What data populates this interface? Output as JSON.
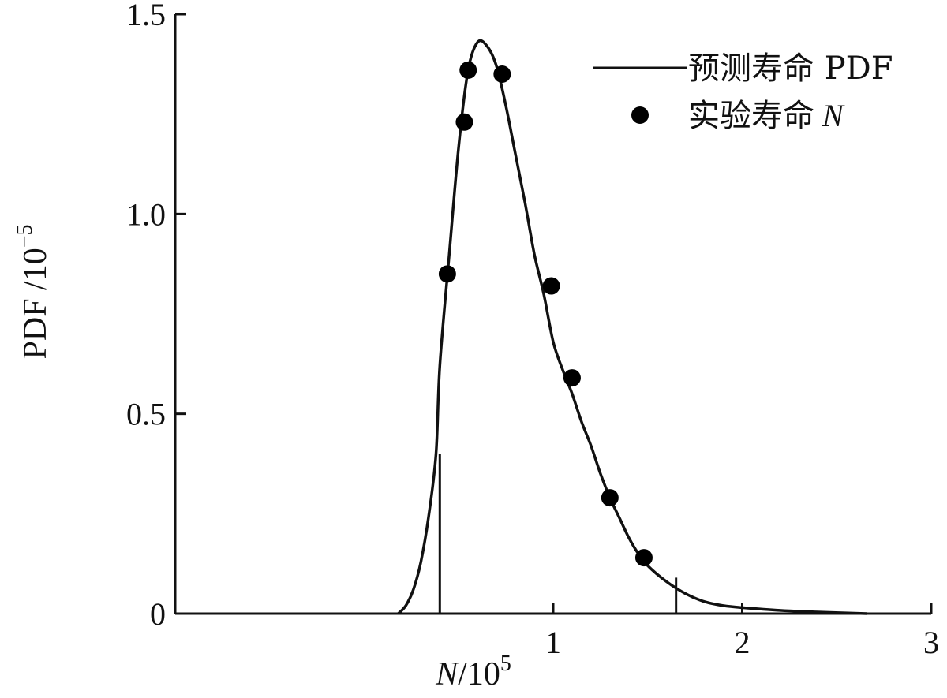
{
  "chart_data": {
    "type": "line",
    "xlabel_var": "N",
    "xlabel_unit": "/10",
    "xlabel_exp": "5",
    "ylabel_text": "PDF /10",
    "ylabel_exp": "−5",
    "xlim": [
      -1,
      3
    ],
    "ylim": [
      0,
      1.5
    ],
    "x_ticks": [
      1,
      2,
      3
    ],
    "x_tick_labels": [
      "1",
      "2",
      "3"
    ],
    "y_ticks": [
      0,
      0.5,
      1.0,
      1.5
    ],
    "y_tick_labels": [
      "0",
      "0.5",
      "1.0",
      "1.5"
    ],
    "legend_position": "top-right",
    "series": [
      {
        "name": "预测寿命 PDF",
        "kind": "line",
        "x": [
          0.18,
          0.22,
          0.26,
          0.3,
          0.34,
          0.38,
          0.4,
          0.45,
          0.5,
          0.55,
          0.6,
          0.65,
          0.7,
          0.75,
          0.8,
          0.85,
          0.9,
          0.95,
          1.0,
          1.05,
          1.1,
          1.15,
          1.2,
          1.25,
          1.3,
          1.35,
          1.4,
          1.45,
          1.5,
          1.6,
          1.7,
          1.8,
          1.9,
          2.0,
          2.2,
          2.4,
          2.66
        ],
        "y": [
          0.0,
          0.02,
          0.06,
          0.13,
          0.24,
          0.4,
          0.62,
          0.9,
          1.17,
          1.36,
          1.43,
          1.42,
          1.37,
          1.27,
          1.15,
          1.03,
          0.9,
          0.8,
          0.68,
          0.61,
          0.55,
          0.48,
          0.42,
          0.35,
          0.29,
          0.24,
          0.19,
          0.15,
          0.12,
          0.08,
          0.05,
          0.03,
          0.02,
          0.015,
          0.008,
          0.004,
          0.0
        ]
      },
      {
        "name": "实验寿命",
        "name_var": "N",
        "kind": "scatter",
        "x": [
          0.44,
          0.53,
          0.55,
          0.73,
          0.99,
          1.1,
          1.3,
          1.48
        ],
        "y": [
          0.85,
          1.23,
          1.36,
          1.35,
          0.82,
          0.59,
          0.29,
          0.14
        ]
      }
    ],
    "bounds": [
      {
        "x": 0.4,
        "y": 0.4
      },
      {
        "x": 1.65,
        "y": 0.09
      }
    ]
  }
}
